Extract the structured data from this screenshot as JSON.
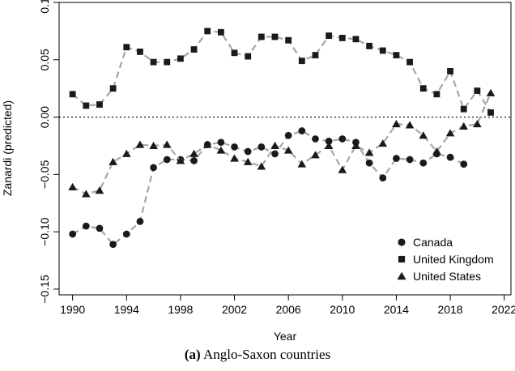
{
  "caption": {
    "letter": "(a)",
    "text": "Anglo-Saxon countries"
  },
  "chart_data": {
    "type": "line",
    "xlabel": "Year",
    "ylabel": "Zanardi (predicted)",
    "xlim": [
      1989,
      2022.5
    ],
    "ylim": [
      -0.155,
      0.1
    ],
    "x_ticks": [
      "1990",
      "1994",
      "1998",
      "2002",
      "2006",
      "2010",
      "2014",
      "2018",
      "2022"
    ],
    "y_ticks": [
      "0.10",
      "0.05",
      "0.00",
      "−0.05",
      "−0.10",
      "−0.15"
    ],
    "y_tick_values": [
      0.1,
      0.05,
      0.0,
      -0.05,
      -0.1,
      -0.15
    ],
    "x_tick_values": [
      1990,
      1994,
      1998,
      2002,
      2006,
      2010,
      2014,
      2018,
      2022
    ],
    "reference_line": 0.0,
    "legend_position": "bottom-right",
    "line_color": "#a6a6a6",
    "marker_color": "#1a1a1a",
    "series": [
      {
        "name": "Canada",
        "marker": "circle",
        "x": [
          1990,
          1991,
          1992,
          1993,
          1994,
          1995,
          1996,
          1997,
          1998,
          1999,
          2000,
          2001,
          2002,
          2003,
          2004,
          2005,
          2006,
          2007,
          2008,
          2009,
          2010,
          2011,
          2012,
          2013,
          2014,
          2015,
          2016,
          2017,
          2018,
          2019
        ],
        "y": [
          -0.102,
          -0.095,
          -0.097,
          -0.111,
          -0.102,
          -0.091,
          -0.044,
          -0.037,
          -0.037,
          -0.038,
          -0.024,
          -0.022,
          -0.026,
          -0.03,
          -0.026,
          -0.032,
          -0.016,
          -0.012,
          -0.019,
          -0.021,
          -0.019,
          -0.022,
          -0.04,
          -0.053,
          -0.036,
          -0.037,
          -0.04,
          -0.032,
          -0.035,
          -0.041
        ]
      },
      {
        "name": "United Kingdom",
        "marker": "square",
        "x": [
          1990,
          1991,
          1992,
          1993,
          1994,
          1995,
          1996,
          1997,
          1998,
          1999,
          2000,
          2001,
          2002,
          2003,
          2004,
          2005,
          2006,
          2007,
          2008,
          2009,
          2010,
          2011,
          2012,
          2013,
          2014,
          2015,
          2016,
          2017,
          2018,
          2019,
          2020,
          2021
        ],
        "y": [
          0.02,
          0.01,
          0.011,
          0.025,
          0.061,
          0.057,
          0.048,
          0.048,
          0.051,
          0.059,
          0.075,
          0.074,
          0.056,
          0.053,
          0.07,
          0.07,
          0.067,
          0.049,
          0.054,
          0.071,
          0.069,
          0.068,
          0.062,
          0.058,
          0.054,
          0.048,
          0.025,
          0.02,
          0.04,
          0.007,
          0.023,
          0.004
        ]
      },
      {
        "name": "United States",
        "marker": "triangle",
        "x": [
          1990,
          1991,
          1992,
          1993,
          1994,
          1995,
          1996,
          1997,
          1998,
          1999,
          2000,
          2001,
          2002,
          2003,
          2004,
          2005,
          2006,
          2007,
          2008,
          2009,
          2010,
          2011,
          2012,
          2013,
          2014,
          2015,
          2016,
          2017,
          2018,
          2019,
          2020,
          2021
        ],
        "y": [
          -0.061,
          -0.067,
          -0.064,
          -0.039,
          -0.032,
          -0.024,
          -0.025,
          -0.024,
          -0.038,
          -0.032,
          -0.024,
          -0.029,
          -0.036,
          -0.039,
          -0.043,
          -0.025,
          -0.029,
          -0.041,
          -0.033,
          -0.025,
          -0.046,
          -0.025,
          -0.031,
          -0.023,
          -0.006,
          -0.007,
          -0.016,
          -0.03,
          -0.014,
          -0.008,
          -0.006,
          0.021
        ]
      }
    ]
  }
}
